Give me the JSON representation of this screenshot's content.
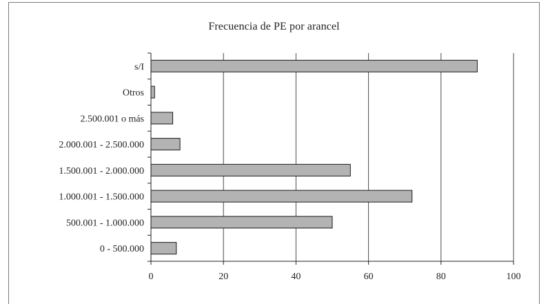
{
  "chart_data": {
    "type": "bar",
    "orientation": "horizontal",
    "title": "Frecuencia de PE por arancel",
    "xlabel": "",
    "ylabel": "",
    "categories": [
      "s/I",
      "Otros",
      "2.500.001 o más",
      "2.000.001 - 2.500.000",
      "1.500.001 - 2.000.000",
      "1.000.001 - 1.500.000",
      "500.001 - 1.000.000",
      "0 - 500.000"
    ],
    "values": [
      90,
      1,
      6,
      8,
      55,
      72,
      50,
      7
    ],
    "xlim": [
      0,
      100
    ],
    "xticks": [
      0,
      20,
      40,
      60,
      80,
      100
    ],
    "grid": "vertical",
    "legend": "none",
    "bar_color": "#b3b3b3",
    "bar_edge_color": "#1a1a1a",
    "grid_color": "#4a4a4a"
  }
}
